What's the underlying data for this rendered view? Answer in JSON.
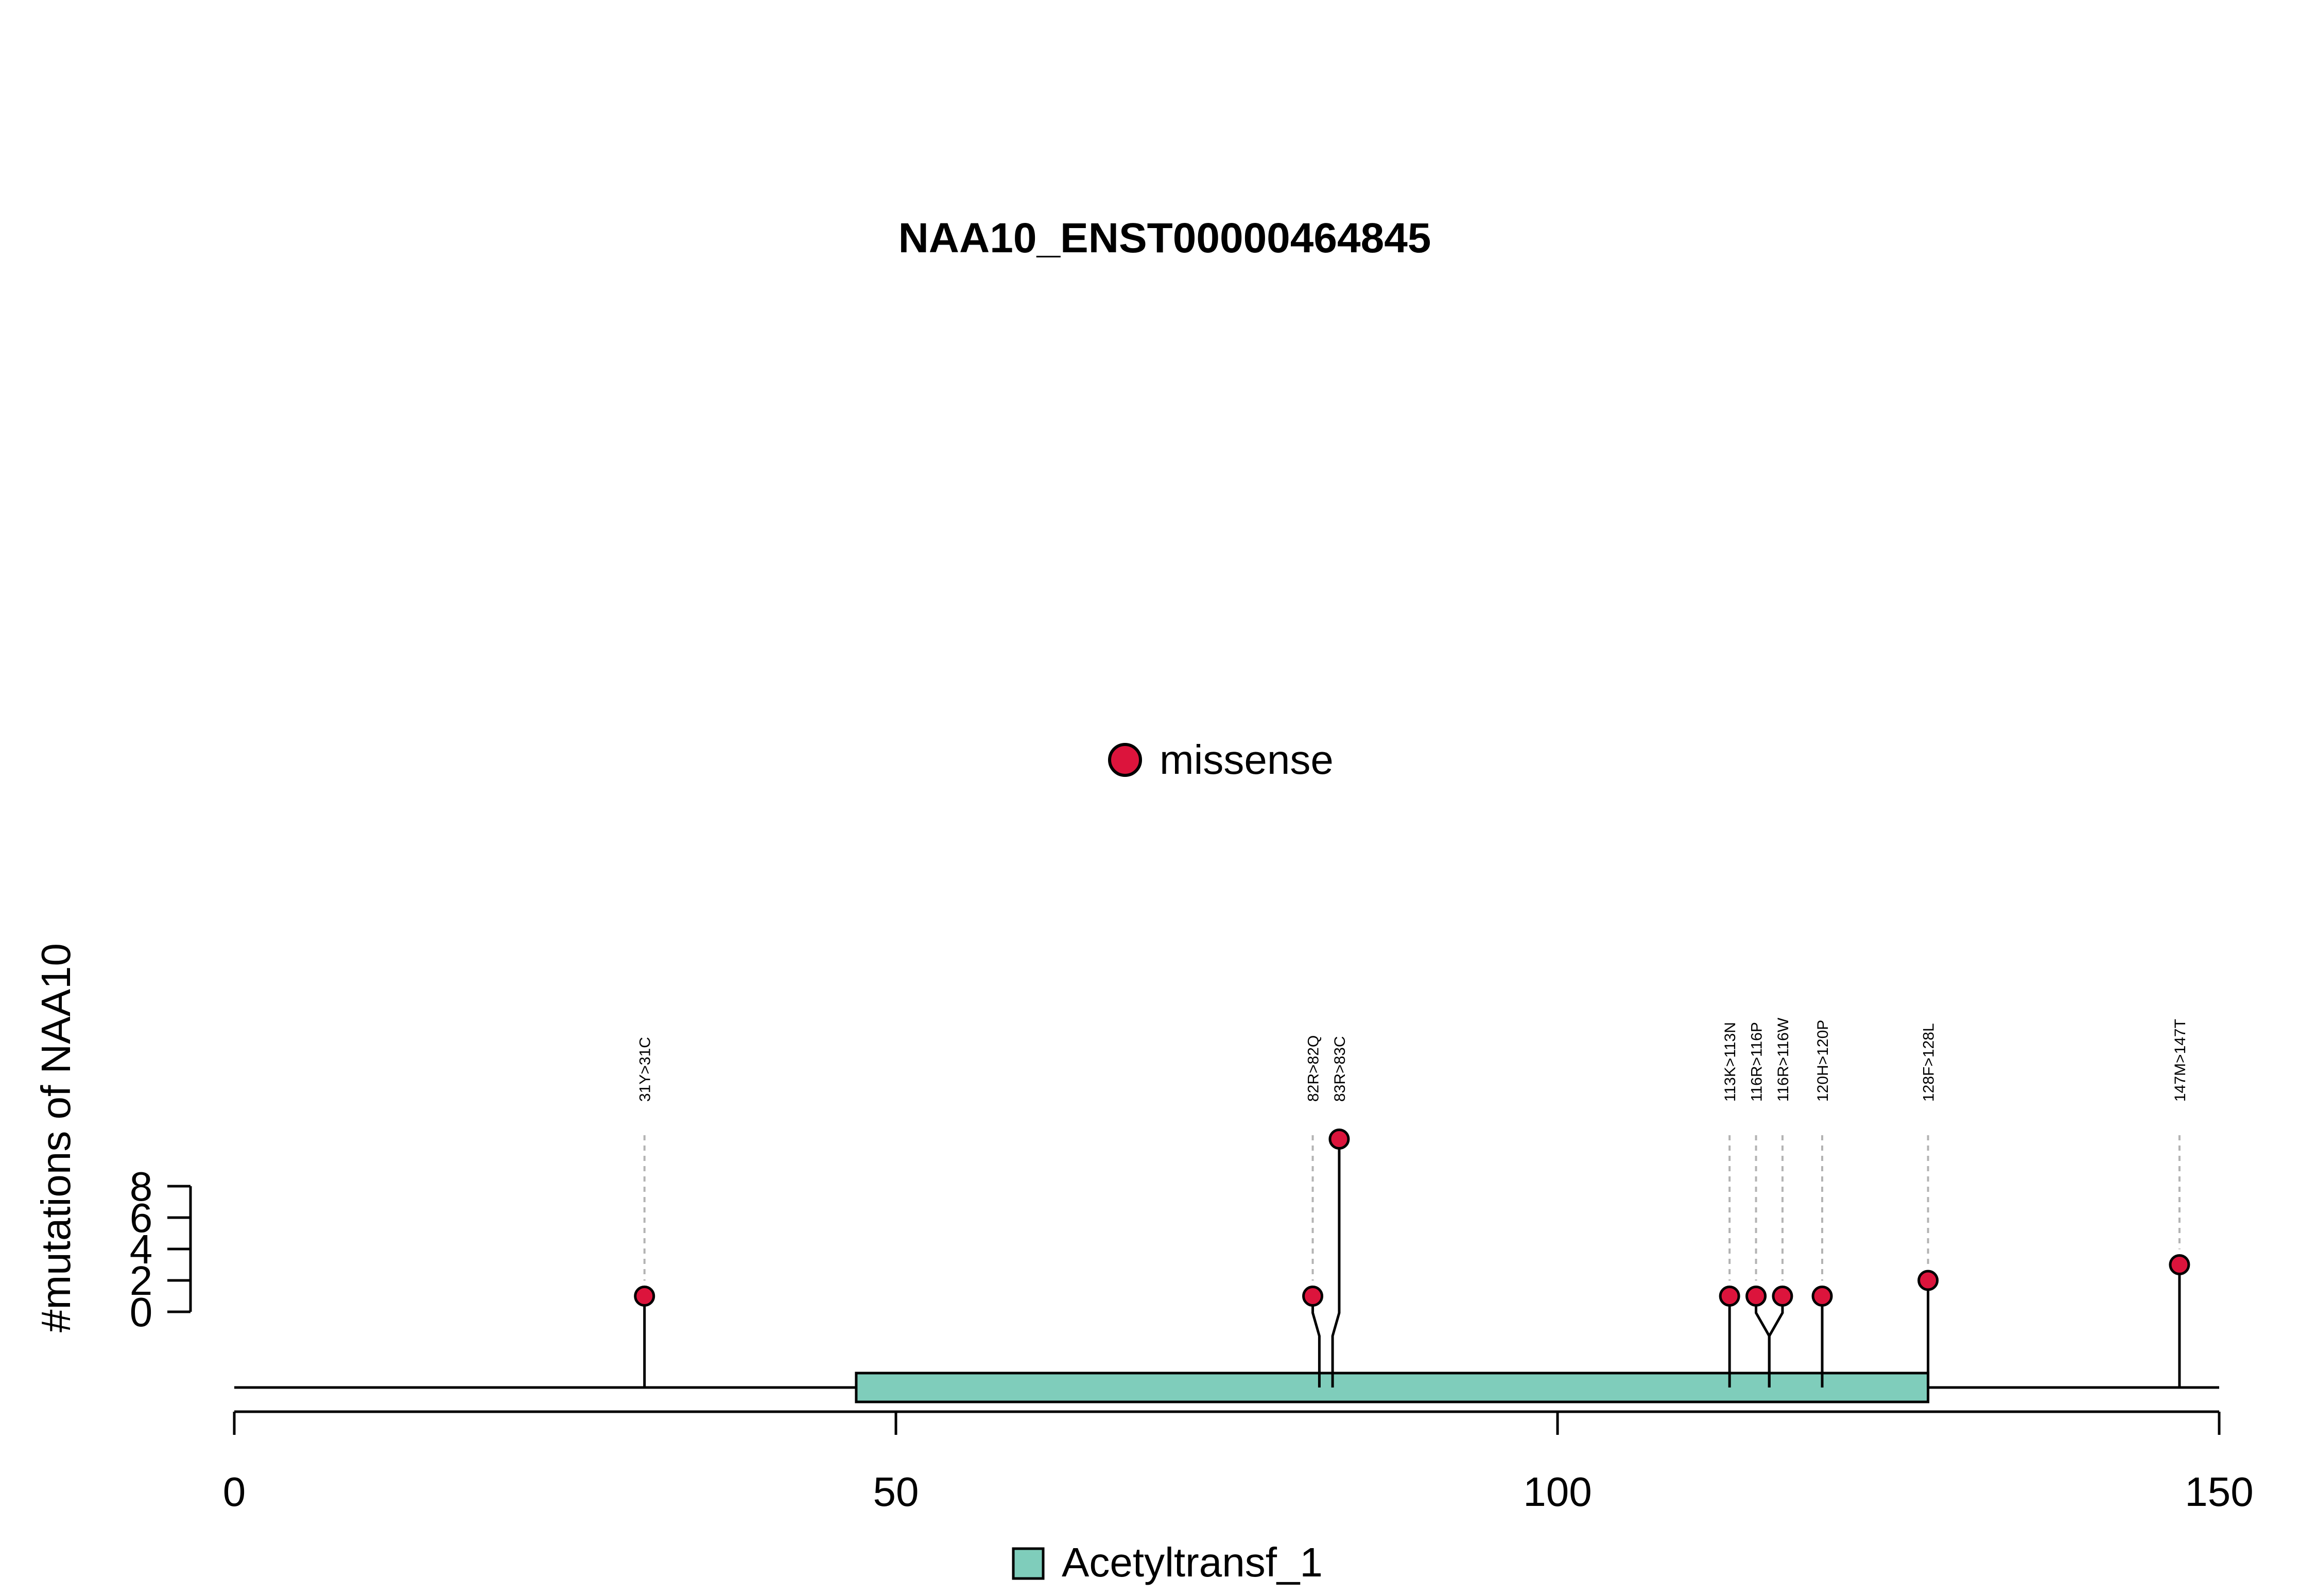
{
  "chart_data": {
    "type": "lollipop",
    "title": "NAA10_ENST00000464845",
    "ylabel": "#mutations of NAA10",
    "xlim": [
      0,
      150
    ],
    "x_ticks": [
      "0",
      "50",
      "100",
      "150"
    ],
    "y_ticks": [
      "0",
      "2",
      "4",
      "6",
      "8"
    ],
    "protein_length": 150,
    "legend_mutation": {
      "label": "missense",
      "color": "#DC143C"
    },
    "legend_domain": {
      "label": "Acetyltransf_1",
      "color": "#7FCDBB"
    },
    "domains": [
      {
        "name": "Acetyltransf_1",
        "start": 47,
        "end": 128,
        "color": "#7FCDBB"
      }
    ],
    "mutations": [
      {
        "label": "31Y>31C",
        "position": 31,
        "count": 1,
        "type": "missense"
      },
      {
        "label": "82R>82Q",
        "position": 82,
        "count": 1,
        "type": "missense"
      },
      {
        "label": "83R>83C",
        "position": 83,
        "count": 11,
        "type": "missense"
      },
      {
        "label": "113K>113N",
        "position": 113,
        "count": 1,
        "type": "missense"
      },
      {
        "label": "116R>116P",
        "position": 116,
        "count": 1,
        "type": "missense"
      },
      {
        "label": "116R>116W",
        "position": 116,
        "count": 1,
        "type": "missense"
      },
      {
        "label": "120H>120P",
        "position": 120,
        "count": 1,
        "type": "missense"
      },
      {
        "label": "128F>128L",
        "position": 128,
        "count": 2,
        "type": "missense"
      },
      {
        "label": "147M>147T",
        "position": 147,
        "count": 3,
        "type": "missense"
      }
    ]
  }
}
